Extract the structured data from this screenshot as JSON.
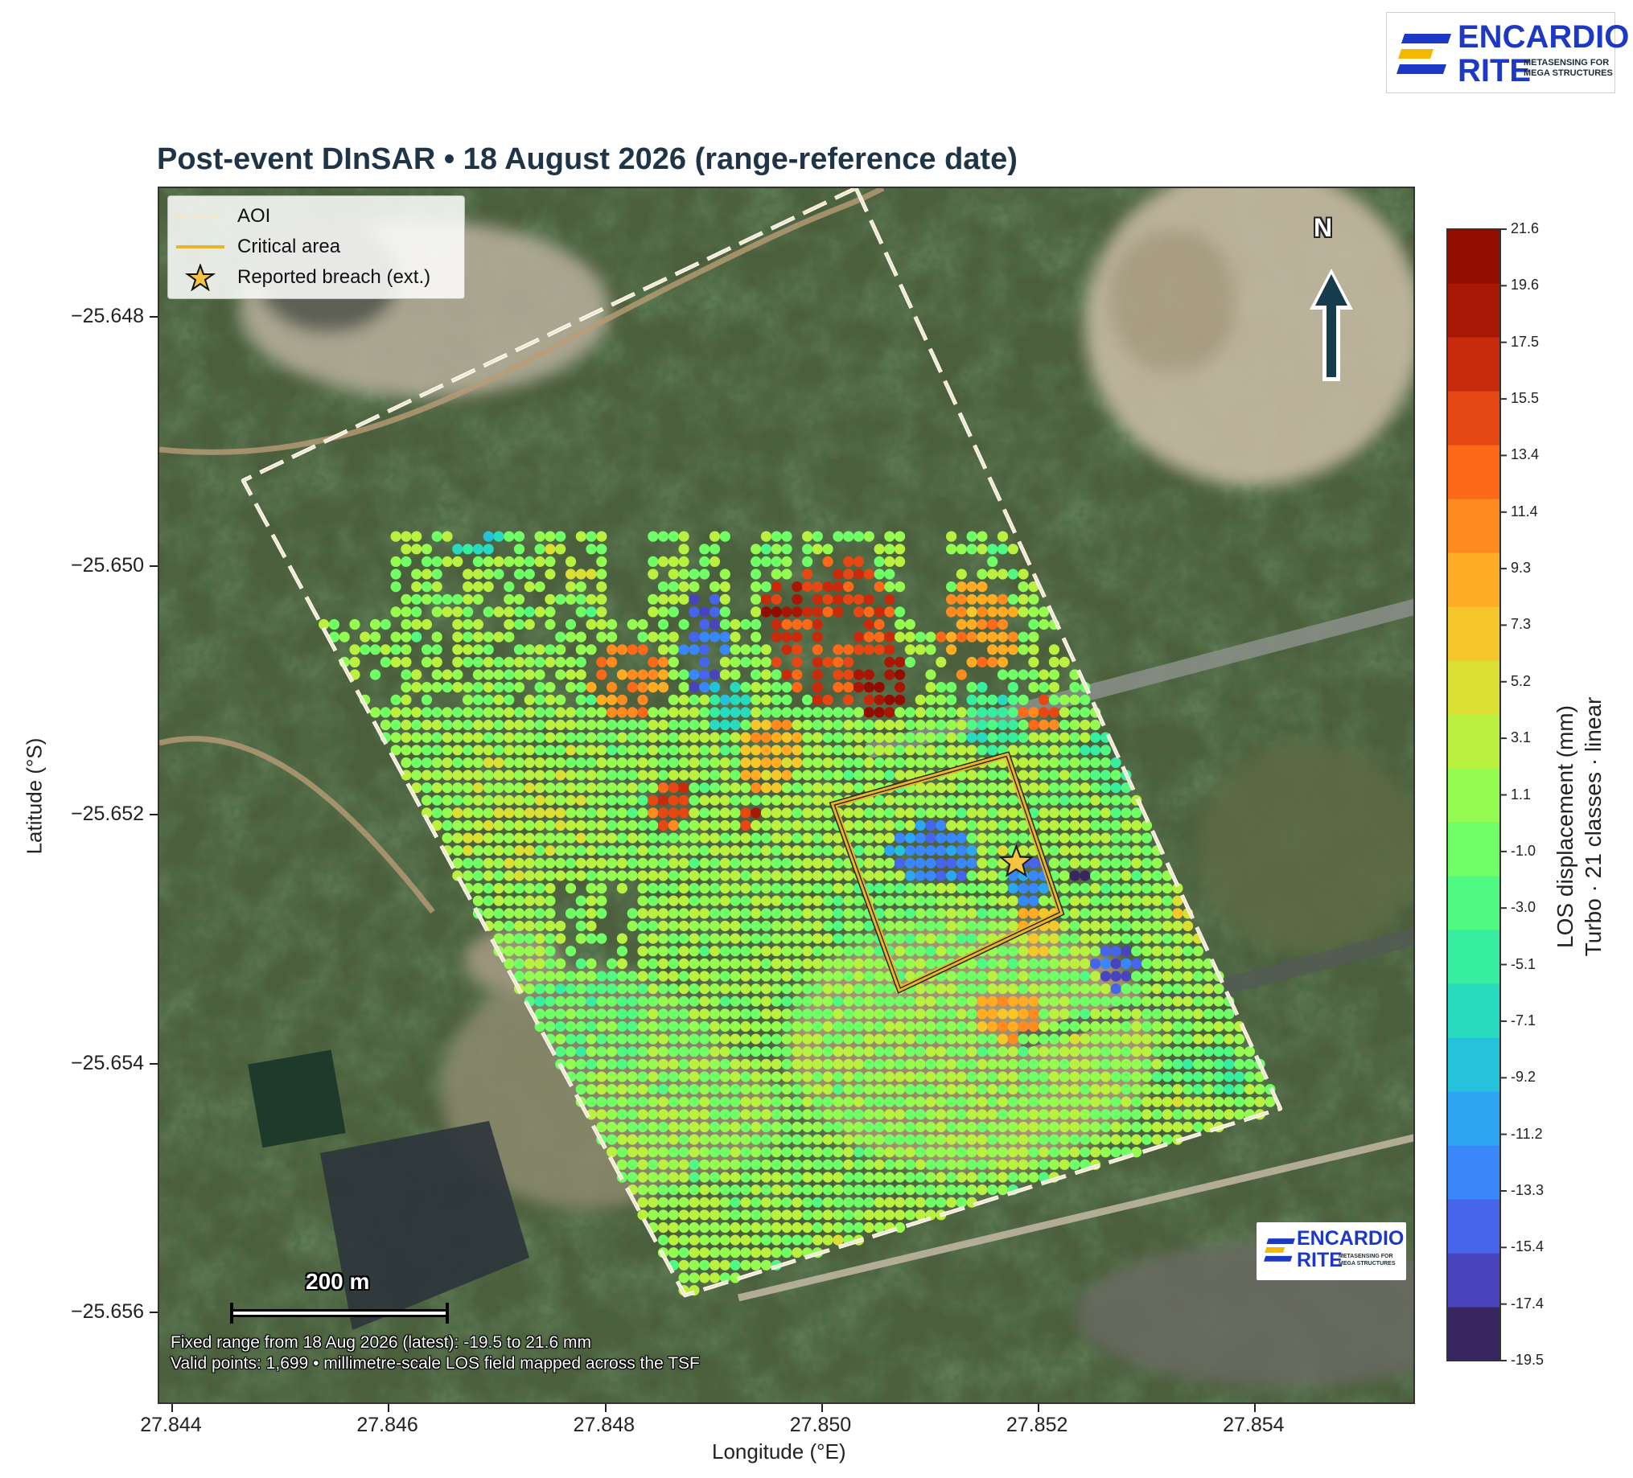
{
  "title": "Post-event DInSAR  •  18 August 2026  (range-reference date)",
  "brand": {
    "name_line1": "ENCARDIO",
    "name_line2": "RITE",
    "tagline_line1": "METASENSING FOR",
    "tagline_line2": "MEGA STRUCTURES",
    "colors": {
      "blue": "#1d39c4",
      "yellow": "#f5b800"
    }
  },
  "axes": {
    "xlabel": "Longitude (°E)",
    "ylabel": "Latitude (°S)",
    "x_ticks": [
      {
        "value": 27.844,
        "label": "27.844"
      },
      {
        "value": 27.846,
        "label": "27.846"
      },
      {
        "value": 27.848,
        "label": "27.848"
      },
      {
        "value": 27.85,
        "label": "27.850"
      },
      {
        "value": 27.852,
        "label": "27.852"
      },
      {
        "value": 27.854,
        "label": "27.854"
      }
    ],
    "y_ticks": [
      {
        "value": -25.648,
        "label": "−25.648"
      },
      {
        "value": -25.65,
        "label": "−25.650"
      },
      {
        "value": -25.652,
        "label": "−25.652"
      },
      {
        "value": -25.654,
        "label": "−25.654"
      },
      {
        "value": -25.656,
        "label": "−25.656"
      }
    ],
    "xlim": [
      27.84385,
      27.8555
    ],
    "ylim": [
      -25.65675,
      -25.64695
    ]
  },
  "legend": {
    "items": [
      {
        "label": "AOI",
        "symbol": "dashed-line",
        "color": "#f3e7c9"
      },
      {
        "label": "Critical area",
        "symbol": "solid-line",
        "color": "#e8b531"
      },
      {
        "label": "Reported breach (ext.)",
        "symbol": "star",
        "color": "#f5c542"
      }
    ],
    "position": "top-left"
  },
  "aoi": {
    "lon": [
      27.8503,
      27.85422,
      27.84872,
      27.84464
    ],
    "lat": [
      -25.64695,
      -25.65435,
      -25.65585,
      -25.6493
    ]
  },
  "critical_area": {
    "lon": [
      27.8517,
      27.8522,
      27.8507,
      27.85008
    ],
    "lat": [
      -25.6515,
      -25.65278,
      -25.6534,
      -25.6519
    ]
  },
  "breach": {
    "lon": 27.85178,
    "lat": -25.65237
  },
  "colorbar": {
    "title_line1": "LOS displacement (mm)",
    "title_line2": "Turbo  ·  21 classes  ·  linear",
    "min": -19.5,
    "max": 21.6,
    "ticks": [
      "21.6",
      "19.6",
      "17.5",
      "15.5",
      "13.4",
      "11.4",
      "9.3",
      "7.3",
      "5.2",
      "3.1",
      "1.1",
      "-1.0",
      "-3.0",
      "-5.1",
      "-7.1",
      "-9.2",
      "-11.2",
      "-13.3",
      "-15.4",
      "-17.4",
      "-19.5"
    ]
  },
  "scalebar": {
    "label": "200 m"
  },
  "north_arrow": {
    "label": "N"
  },
  "footnote": {
    "line1": "Fixed range from 18 Aug 2026 (latest): -19.5 to 21.6 mm",
    "line2": "Valid points: 1,699  •  millimetre-scale LOS field mapped across the TSF"
  },
  "chart_data": {
    "type": "scatter",
    "title": "Post-event DInSAR  •  18 August 2026  (range-reference date)",
    "xlabel": "Longitude (°E)",
    "ylabel": "Latitude (°S)",
    "value_unit": "mm",
    "valid_points": 1699,
    "value_range": [
      -19.5,
      21.6
    ],
    "grid_spacing_deg": {
      "lon": 9.5e-05,
      "lat": 0.000101
    },
    "clusters": [
      {
        "lon": 27.851,
        "lat": -25.6523,
        "value": -12.0,
        "rx": 0.0004,
        "ry": 0.00025
      },
      {
        "lon": 27.8489,
        "lat": -25.6506,
        "value": -14.0,
        "rx": 0.0002,
        "ry": 0.00045
      },
      {
        "lon": 27.8501,
        "lat": -25.6505,
        "value": 15.0,
        "rx": 0.0006,
        "ry": 0.0006
      },
      {
        "lon": 27.8505,
        "lat": -25.6509,
        "value": 20.0,
        "rx": 0.0003,
        "ry": 0.0003
      },
      {
        "lon": 27.8497,
        "lat": -25.6503,
        "value": 18.0,
        "rx": 0.0003,
        "ry": 0.0002
      },
      {
        "lon": 27.8514,
        "lat": -25.6505,
        "value": 10.0,
        "rx": 0.0004,
        "ry": 0.0004
      },
      {
        "lon": 27.8482,
        "lat": -25.6509,
        "value": 11.0,
        "rx": 0.0004,
        "ry": 0.0003
      },
      {
        "lon": 27.8486,
        "lat": -25.6519,
        "value": 14.0,
        "rx": 0.0002,
        "ry": 0.0002
      },
      {
        "lon": 27.8493,
        "lat": -25.652,
        "value": 16.0,
        "rx": 0.0001,
        "ry": 0.0001
      },
      {
        "lon": 27.8495,
        "lat": -25.6515,
        "value": 8.0,
        "rx": 0.0003,
        "ry": 0.0003
      },
      {
        "lon": 27.8476,
        "lat": -25.65,
        "value": 3.0,
        "rx": 0.0003,
        "ry": 0.0002
      },
      {
        "lon": 27.8468,
        "lat": -25.6498,
        "value": -6.0,
        "rx": 0.0003,
        "ry": 0.0001
      },
      {
        "lon": 27.8491,
        "lat": -25.6511,
        "value": -7.0,
        "rx": 0.0002,
        "ry": 0.0002
      },
      {
        "lon": 27.8519,
        "lat": -25.6525,
        "value": -13.0,
        "rx": 0.0002,
        "ry": 0.0002
      },
      {
        "lon": 27.8524,
        "lat": -25.6525,
        "value": -19.0,
        "rx": 0.0001,
        "ry": 6e-05
      },
      {
        "lon": 27.8527,
        "lat": -25.6532,
        "value": -15.0,
        "rx": 0.0002,
        "ry": 0.0002
      },
      {
        "lon": 27.8517,
        "lat": -25.6536,
        "value": 9.0,
        "rx": 0.0003,
        "ry": 0.0002
      },
      {
        "lon": 27.852,
        "lat": -25.6529,
        "value": 6.0,
        "rx": 0.0002,
        "ry": 0.0002
      },
      {
        "lon": 27.8516,
        "lat": -25.6512,
        "value": -4.0,
        "rx": 0.0003,
        "ry": 0.0003
      },
      {
        "lon": 27.8527,
        "lat": -25.6515,
        "value": -3.0,
        "rx": 0.0003,
        "ry": 0.0003
      },
      {
        "lon": 27.852,
        "lat": -25.6512,
        "value": 12.0,
        "rx": 0.0002,
        "ry": 0.00015
      },
      {
        "lon": 27.8536,
        "lat": -25.6527,
        "value": 4.0,
        "rx": 0.0004,
        "ry": 0.0004
      },
      {
        "lon": 27.8537,
        "lat": -25.654,
        "value": -2.0,
        "rx": 0.0006,
        "ry": 0.0002
      },
      {
        "lon": 27.8505,
        "lat": -25.6528,
        "value": -1.0,
        "rx": 0.0005,
        "ry": 0.0003
      },
      {
        "lon": 27.8478,
        "lat": -25.6536,
        "value": -1.5,
        "rx": 0.0006,
        "ry": 0.0005
      },
      {
        "lon": 27.85,
        "lat": -25.6545,
        "value": 0.5,
        "rx": 0.001,
        "ry": 0.0005
      },
      {
        "lon": 27.8472,
        "lat": -25.652,
        "value": 2.5,
        "rx": 0.0006,
        "ry": 0.0005
      }
    ],
    "background_value": 1.0,
    "legend": "top-left",
    "grid": false
  }
}
